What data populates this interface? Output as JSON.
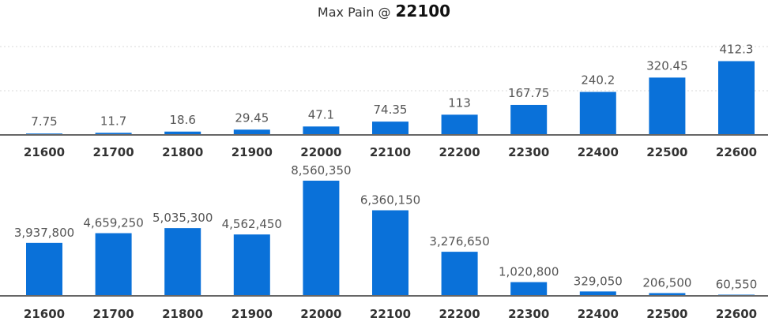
{
  "title": {
    "label": "Max Pain @",
    "value": "22100"
  },
  "colors": {
    "bar": "#0A71D9",
    "axis": "#666666",
    "grid": "#d8d8d8"
  },
  "chart_data": [
    {
      "type": "bar",
      "categories": [
        "21600",
        "21700",
        "21800",
        "21900",
        "22000",
        "22100",
        "22200",
        "22300",
        "22400",
        "22500",
        "22600"
      ],
      "values": [
        7.75,
        11.7,
        18.6,
        29.45,
        47.1,
        74.35,
        113,
        167.75,
        240.2,
        320.45,
        412.3
      ],
      "value_labels": [
        "7.75",
        "11.7",
        "18.6",
        "29.45",
        "47.1",
        "74.35",
        "113",
        "167.75",
        "240.2",
        "320.45",
        "412.3"
      ],
      "ylim": [
        0,
        460
      ],
      "grid": true
    },
    {
      "type": "bar",
      "categories": [
        "21600",
        "21700",
        "21800",
        "21900",
        "22000",
        "22100",
        "22200",
        "22300",
        "22400",
        "22500",
        "22600"
      ],
      "values": [
        3937800,
        4659250,
        5035300,
        4562450,
        8560350,
        6360150,
        3276650,
        1020800,
        329050,
        206500,
        60550
      ],
      "value_labels": [
        "3,937,800",
        "4,659,250",
        "5,035,300",
        "4,562,450",
        "8,560,350",
        "6,360,150",
        "3,276,650",
        "1,020,800",
        "329,050",
        "206,500",
        "60,550"
      ],
      "ylim": [
        0,
        9000000
      ],
      "grid": false
    }
  ]
}
